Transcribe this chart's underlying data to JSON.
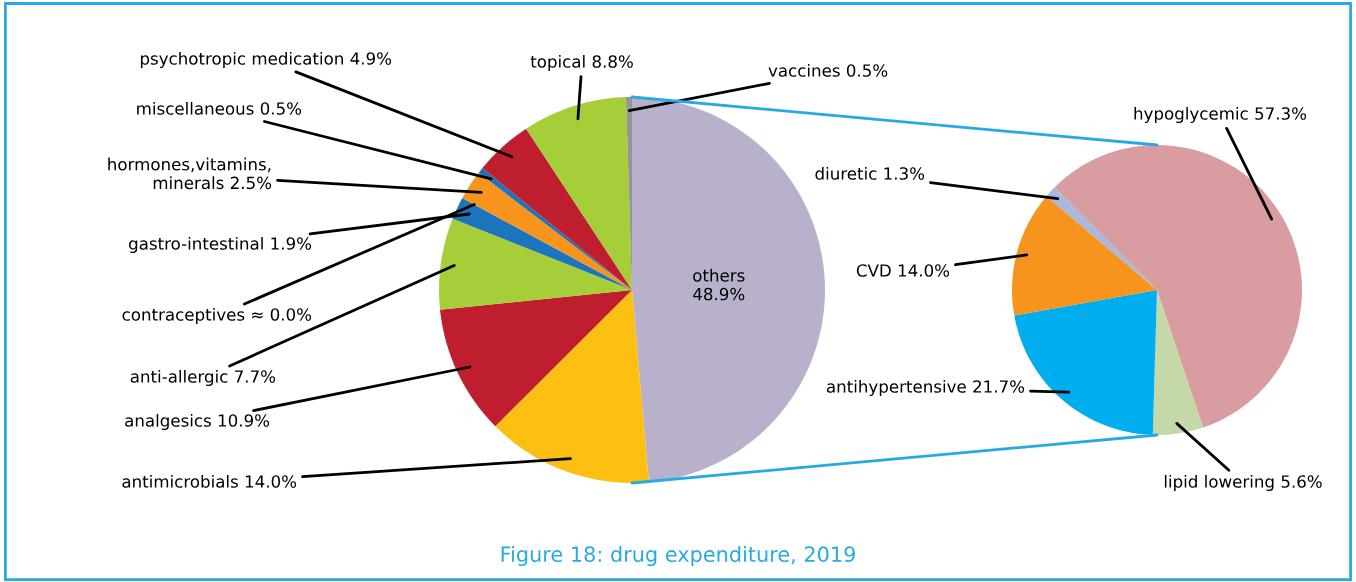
{
  "chart_data": [
    {
      "type": "pie",
      "annotations": [
        "Figure 18: drug expenditure, 2019"
      ],
      "categories": [
        "others",
        "antimicrobials",
        "analgesics",
        "anti-allergic",
        "gastro-intestinal",
        "contraceptives",
        "hormones,vitamins,\nminerals",
        "miscellaneous",
        "psychotropic medication",
        "topical",
        "vaccines"
      ],
      "values": [
        48.9,
        14.0,
        10.9,
        7.7,
        1.9,
        0.0,
        2.5,
        0.5,
        4.9,
        8.8,
        0.5
      ],
      "value_labels": [
        "48.9%",
        "14.0%",
        "10.9%",
        "7.7%",
        "1.9%",
        "≈ 0.0%",
        "2.5%",
        "0.5%",
        "4.9%",
        "8.8%",
        "0.5%"
      ],
      "colors": [
        "#b9b1cc",
        "#fcbf12",
        "#be1e2d",
        "#a6ce39",
        "#1c75bc",
        "#27aae1",
        "#f7941d",
        "#1c75bc",
        "#be1e2d",
        "#a6ce39",
        "#939598"
      ]
    },
    {
      "type": "pie",
      "categories": [
        "hypoglycemic",
        "lipid lowering",
        "antihypertensive",
        "CVD",
        "diuretic"
      ],
      "values": [
        57.3,
        5.6,
        21.7,
        14.0,
        1.3
      ],
      "value_labels": [
        "57.3%",
        "5.6%",
        "21.7%",
        "14.0%",
        "1.3%"
      ],
      "colors": [
        "#d99ca1",
        "#c5d8a8",
        "#00aeef",
        "#f7941d",
        "#a9b8db"
      ]
    }
  ]
}
